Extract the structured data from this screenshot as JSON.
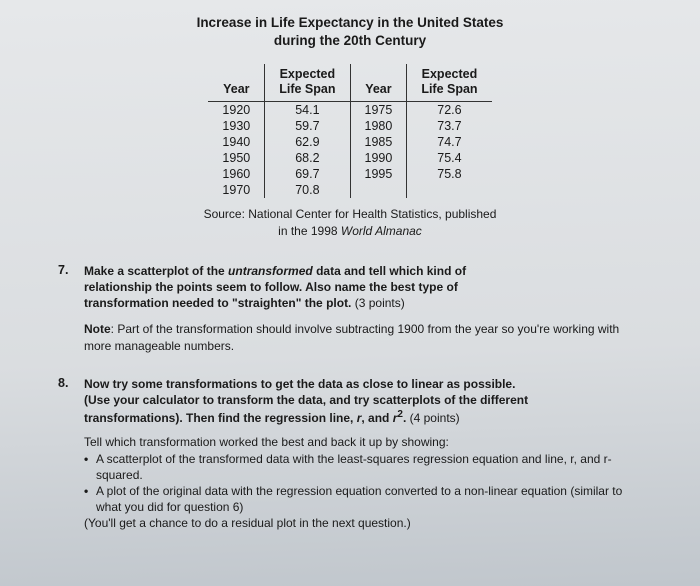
{
  "title_line1": "Increase in Life Expectancy in the United States",
  "title_line2": "during the 20th Century",
  "table": {
    "headers": {
      "year": "Year",
      "span": "Expected\nLife Span"
    },
    "left": [
      {
        "year": "1920",
        "span": "54.1"
      },
      {
        "year": "1930",
        "span": "59.7"
      },
      {
        "year": "1940",
        "span": "62.9"
      },
      {
        "year": "1950",
        "span": "68.2"
      },
      {
        "year": "1960",
        "span": "69.7"
      },
      {
        "year": "1970",
        "span": "70.8"
      }
    ],
    "right": [
      {
        "year": "1975",
        "span": "72.6"
      },
      {
        "year": "1980",
        "span": "73.7"
      },
      {
        "year": "1985",
        "span": "74.7"
      },
      {
        "year": "1990",
        "span": "75.4"
      },
      {
        "year": "1995",
        "span": "75.8"
      },
      {
        "year": "",
        "span": ""
      }
    ]
  },
  "source_prefix": "Source: National Center for Health Statistics, published",
  "source_line2a": "in the 1998 ",
  "source_wa": "World Almanac",
  "q7": {
    "num": "7.",
    "l1a": "Make a scatterplot of the ",
    "l1b": "untransformed",
    "l1c": " data and tell which kind of",
    "l2": "relationship the points seem to follow. Also name the best type of",
    "l3a": "transformation needed to \"straighten\" the plot.",
    "l3b": " (3 points)"
  },
  "note_a": "Note",
  "note_b": ": Part of the transformation should involve subtracting 1900 from the year so you're working with more manageable numbers.",
  "q8": {
    "num": "8.",
    "l1": "Now try some transformations to get the data as close to linear as possible.",
    "l2": "(Use your calculator to transform the data, and try scatterplots of the different",
    "l3a": "transformations). Then find the regression line, ",
    "l3b": "r",
    "l3c": ", and ",
    "l3d": "r",
    "l3e": ".",
    "l3f": " (4 points)"
  },
  "q8body": {
    "intro": "Tell which transformation worked the best and back it up by showing:",
    "b1": "A scatterplot of the transformed data with the least-squares regression equation and line, r, and r-squared.",
    "b2": "A plot of the original data with the regression equation converted to a non-linear equation (similar to what you did for question 6)",
    "tail": "(You'll get a chance to do a residual plot in the next question.)"
  },
  "style": {
    "background_colors": [
      "#e6e8ea",
      "#dadde0",
      "#c0c6cc"
    ],
    "text_color": "#1a1a1a",
    "rule_color": "#333333",
    "font_family": "Verdana",
    "title_fontsize_pt": 10,
    "body_fontsize_pt": 9
  }
}
